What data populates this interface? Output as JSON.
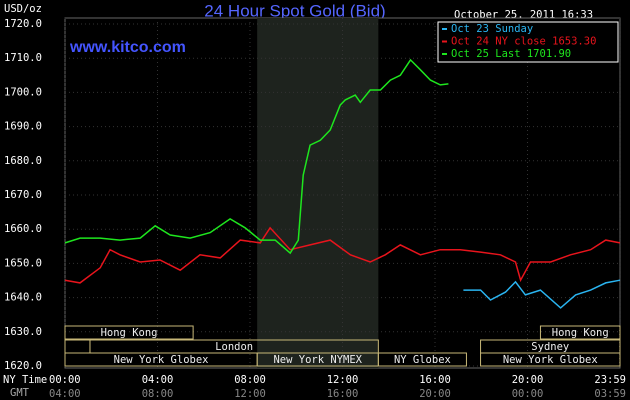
{
  "chart_data": {
    "type": "line",
    "title": "24 Hour Spot Gold (Bid)",
    "website": "www.kitco.com",
    "timestamp": "October 25, 2011 16:33",
    "y_unit": "USD/oz",
    "x_label": "NY Time",
    "x2_label": "GMT",
    "xlim": [
      0,
      24
    ],
    "xticks": [
      {
        "value": 0,
        "label": "00:00"
      },
      {
        "value": 4,
        "label": "04:00"
      },
      {
        "value": 8,
        "label": "08:00"
      },
      {
        "value": 12,
        "label": "12:00"
      },
      {
        "value": 16,
        "label": "16:00"
      },
      {
        "value": 20,
        "label": "20:00"
      },
      {
        "value": 23.98,
        "label": "23:59"
      }
    ],
    "x2ticks": [
      "04:00",
      "08:00",
      "12:00",
      "16:00",
      "20:00",
      "00:00",
      "03:59"
    ],
    "ylim": [
      1620,
      1720
    ],
    "yticks": [
      {
        "value": 1620,
        "label": "1620.0"
      },
      {
        "value": 1630,
        "label": "1630.0"
      },
      {
        "value": 1640,
        "label": "1640.0"
      },
      {
        "value": 1650,
        "label": "1650.0"
      },
      {
        "value": 1660,
        "label": "1660.0"
      },
      {
        "value": 1670,
        "label": "1670.0"
      },
      {
        "value": 1680,
        "label": "1680.0"
      },
      {
        "value": 1690,
        "label": "1690.0"
      },
      {
        "value": 1700,
        "label": "1700.0"
      },
      {
        "value": 1710,
        "label": "1710.0"
      },
      {
        "value": 1720,
        "label": "1720.0"
      }
    ],
    "grid": true,
    "shaded_x": [
      8.31,
      13.55
    ],
    "sessions": [
      {
        "label": "Hong Kong",
        "start": 0,
        "end": 5.54
      },
      {
        "start": 0,
        "end": 1.08
      },
      {
        "label": "London",
        "start": 1.08,
        "end": 13.55
      },
      {
        "label": "New York Globex",
        "start": 0,
        "end": 8.31
      },
      {
        "label": "New York NYMEX",
        "start": 8.31,
        "end": 13.55
      },
      {
        "label": "NY Globex",
        "start": 13.55,
        "end": 17.36
      },
      {
        "label": "Hong Kong",
        "start": 20.56,
        "end": 24
      },
      {
        "label": "Sydney",
        "start": 17.97,
        "end": 24
      },
      {
        "label": "New York Globex",
        "start": 17.97,
        "end": 24
      }
    ],
    "series": [
      {
        "name": "Oct 23 Sunday",
        "color": "#2ab4f0",
        "x": [
          17.23,
          17.97,
          18.4,
          19.05,
          19.48,
          19.91,
          20.56,
          21.43,
          22.08,
          22.73,
          23.38,
          24
        ],
        "values": [
          1642.2,
          1642.2,
          1639.3,
          1641.6,
          1644.6,
          1640.8,
          1642.2,
          1637,
          1640.8,
          1642.2,
          1644.3,
          1645.1
        ]
      },
      {
        "name": "Oct 24 NY close 1653.30",
        "color": "#e8141c",
        "x": [
          0,
          0.65,
          1.52,
          1.95,
          2.38,
          3.25,
          4.11,
          4.98,
          5.84,
          6.71,
          7.58,
          8.44,
          8.87,
          9.74,
          10.6,
          11.47,
          12.34,
          13.2,
          13.85,
          14.5,
          15.37,
          16.23,
          17.1,
          17.97,
          18.83,
          19.48,
          19.7,
          20.13,
          21.0,
          21.86,
          22.73,
          23.38,
          24
        ],
        "values": [
          1645.1,
          1644.3,
          1648.7,
          1654,
          1652.5,
          1650.4,
          1651,
          1648,
          1652.5,
          1651.6,
          1656.8,
          1656,
          1660.4,
          1654,
          1655.4,
          1656.8,
          1652.5,
          1650.4,
          1652.5,
          1655.4,
          1652.5,
          1654,
          1654,
          1653.3,
          1652.5,
          1650.4,
          1645.1,
          1650.4,
          1650.4,
          1652.5,
          1654,
          1656.8,
          1656
        ]
      },
      {
        "name": "Oct 25 Last 1701.90",
        "color": "#1ee61e",
        "x": [
          0,
          0.65,
          1.52,
          2.38,
          3.25,
          3.9,
          4.55,
          5.41,
          6.28,
          7.14,
          7.79,
          8.44,
          9.09,
          9.74,
          10.09,
          10.3,
          10.6,
          11.04,
          11.47,
          11.9,
          12.12,
          12.55,
          12.77,
          13.2,
          13.64,
          14.07,
          14.5,
          14.94,
          15.37,
          15.8,
          16.23,
          16.58
        ],
        "values": [
          1656,
          1657.4,
          1657.4,
          1656.8,
          1657.4,
          1661,
          1658.3,
          1657.4,
          1659,
          1663,
          1660.4,
          1656.8,
          1656.8,
          1653,
          1656.8,
          1675.8,
          1684.6,
          1686,
          1689,
          1696.3,
          1697.8,
          1699.2,
          1697.1,
          1700.7,
          1700.7,
          1703.6,
          1705,
          1709.5,
          1706.6,
          1703.6,
          1702.2,
          1702.5
        ]
      }
    ]
  }
}
